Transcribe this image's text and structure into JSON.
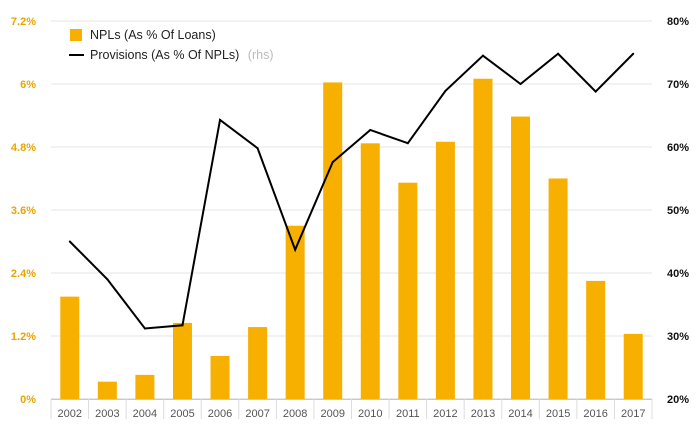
{
  "chart_data": {
    "type": "bar+line",
    "categories": [
      "2002",
      "2003",
      "2004",
      "2005",
      "2006",
      "2007",
      "2008",
      "2009",
      "2010",
      "2011",
      "2012",
      "2013",
      "2014",
      "2015",
      "2016",
      "2017"
    ],
    "series": [
      {
        "name": "NPLs (As % Of Loans)",
        "type": "bar",
        "axis": "left",
        "color": "#f7b000",
        "values": [
          1.95,
          0.33,
          0.46,
          1.45,
          0.82,
          1.37,
          3.3,
          6.03,
          4.87,
          4.12,
          4.9,
          6.1,
          5.38,
          4.2,
          2.25,
          1.24
        ]
      },
      {
        "name": "Provisions (As % Of NPLs)",
        "name_note": "(rhs)",
        "type": "line",
        "axis": "right",
        "color": "#000000",
        "values": [
          45.0,
          39.0,
          31.2,
          31.7,
          64.3,
          59.8,
          43.7,
          57.6,
          62.7,
          60.6,
          68.9,
          74.5,
          70.0,
          74.8,
          68.8,
          74.8
        ]
      }
    ],
    "left_axis": {
      "ylim": [
        0,
        7.2
      ],
      "ticks": [
        0,
        1.2,
        2.4,
        3.6,
        4.8,
        6,
        7.2
      ],
      "tick_labels": [
        "0%",
        "1.2%",
        "2.4%",
        "3.6%",
        "4.8%",
        "6%",
        "7.2%"
      ],
      "color": "#e8a500"
    },
    "right_axis": {
      "ylim": [
        20,
        80
      ],
      "ticks": [
        20,
        30,
        40,
        50,
        60,
        70,
        80
      ],
      "tick_labels": [
        "20%",
        "30%",
        "40%",
        "50%",
        "60%",
        "70%",
        "80%"
      ],
      "color": "#111111"
    },
    "grid": true,
    "legend": "top-left",
    "title": "",
    "xlabel": "",
    "ylabel": ""
  }
}
